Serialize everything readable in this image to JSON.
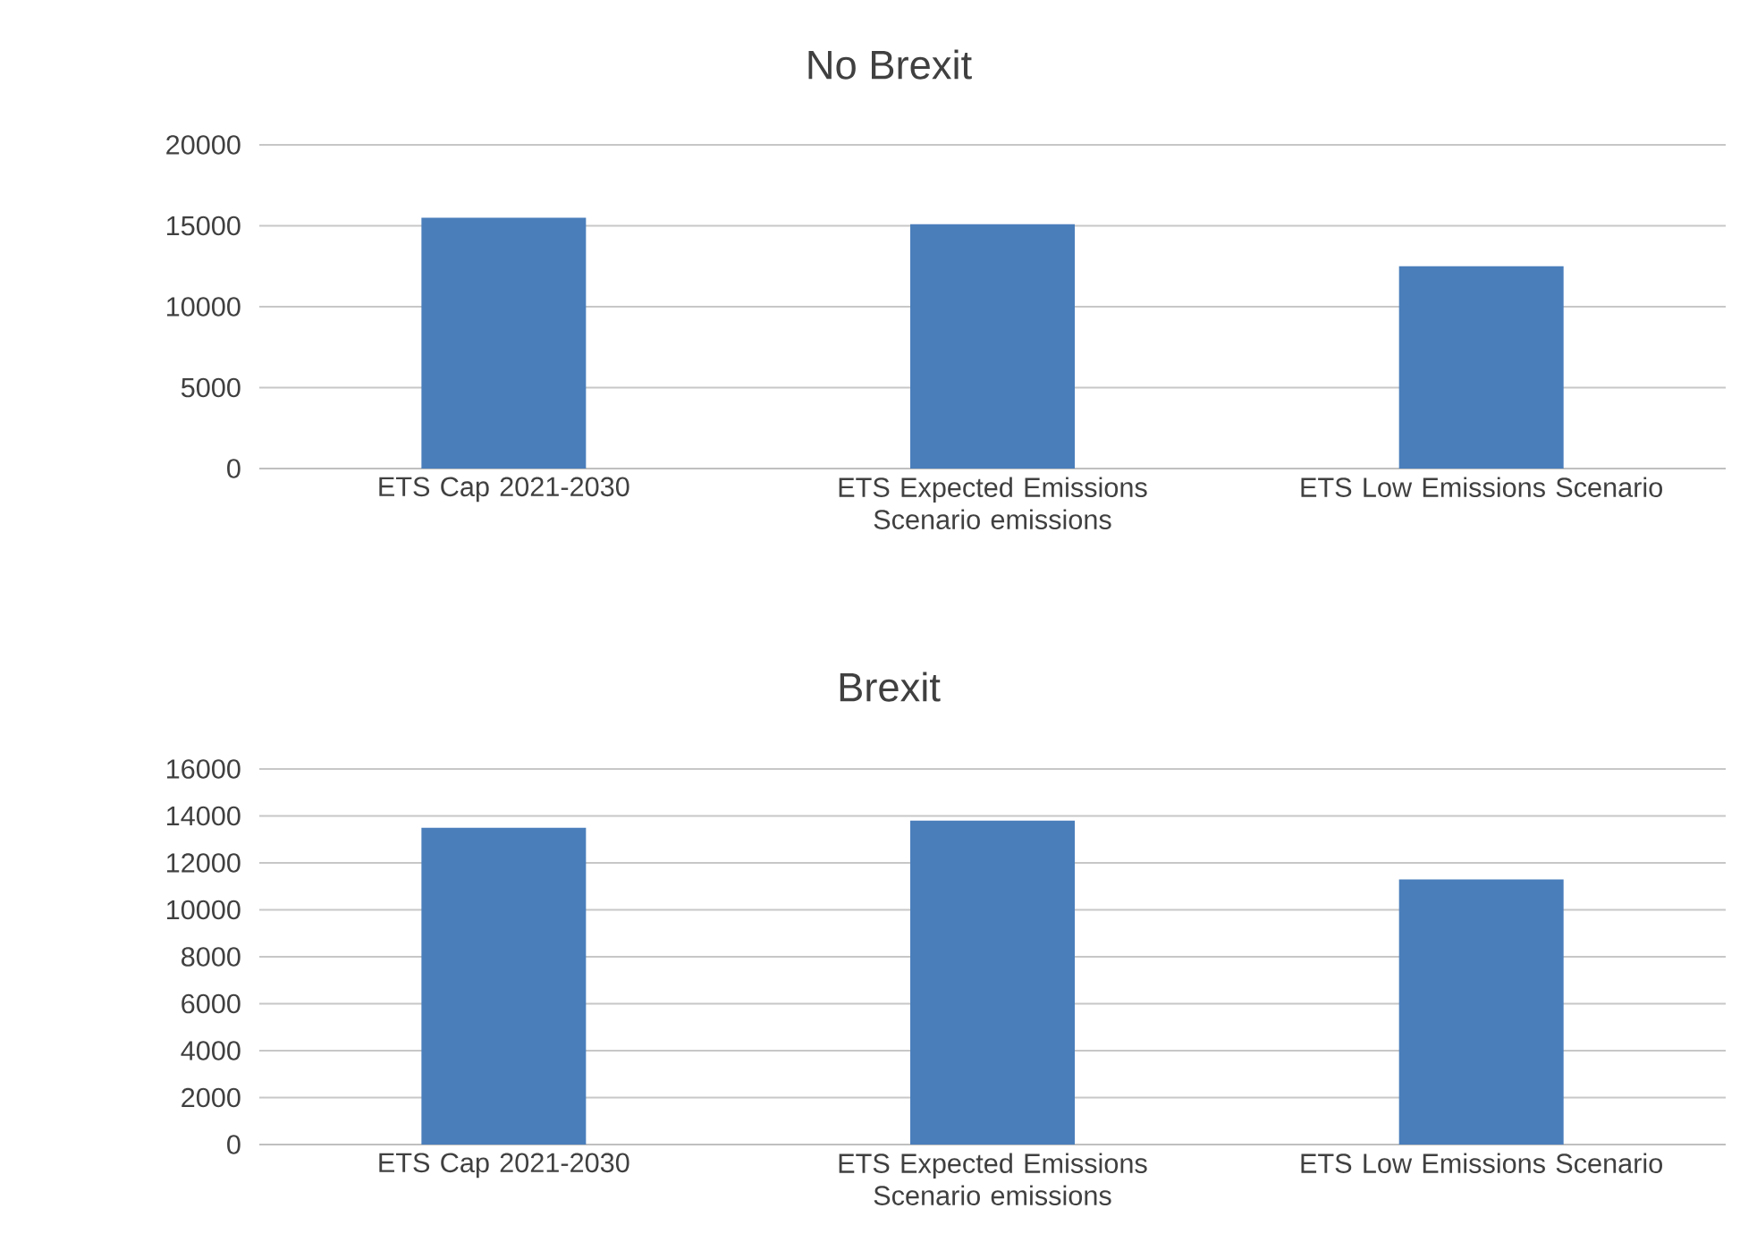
{
  "chart_data": [
    {
      "type": "bar",
      "title": "No Brexit",
      "categories": [
        "ETS Cap 2021-2030",
        "ETS Expected Emissions Scenario emissions",
        "ETS Low Emissions Scenario"
      ],
      "values": [
        15500,
        15100,
        12500
      ],
      "color": "#4a7ebb",
      "ylim": [
        0,
        20000
      ],
      "yticks": [
        0,
        5000,
        10000,
        15000,
        20000
      ],
      "grid": "y"
    },
    {
      "type": "bar",
      "title": "Brexit",
      "categories": [
        "ETS Cap 2021-2030",
        "ETS Expected Emissions Scenario emissions",
        "ETS Low Emissions Scenario"
      ],
      "values": [
        13500,
        13800,
        11300
      ],
      "color": "#4a7ebb",
      "ylim": [
        0,
        16000
      ],
      "yticks": [
        0,
        2000,
        4000,
        6000,
        8000,
        10000,
        12000,
        14000,
        16000
      ],
      "grid": "y"
    }
  ]
}
